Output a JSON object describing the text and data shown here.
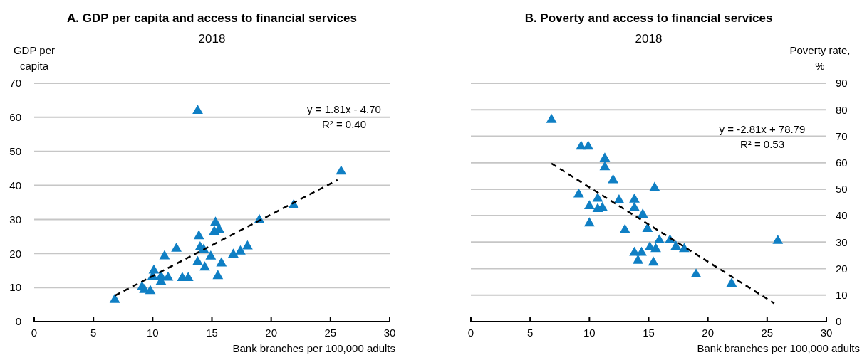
{
  "chart_data": [
    {
      "type": "scatter",
      "title": "A. GDP per capita and access to financial services",
      "subtitle": "2018",
      "xlabel": "Bank branches per 100,000 adults",
      "ylabel": "GDP per capita",
      "xlim": [
        0,
        30
      ],
      "xticks": [
        0,
        5,
        10,
        15,
        20,
        25,
        30
      ],
      "ylim": [
        0,
        70
      ],
      "yticks": [
        0,
        10,
        20,
        30,
        40,
        50,
        60,
        70
      ],
      "grid": "y",
      "marker": "triangle",
      "series": [
        {
          "color": "#0f7fc4",
          "x": [
            6.8,
            9.1,
            9.3,
            9.8,
            10.1,
            10.0,
            10.7,
            10.7,
            11.3,
            11.0,
            12.0,
            12.5,
            13.0,
            13.9,
            13.8,
            14.0,
            14.3,
            14.4,
            14.9,
            15.3,
            15.2,
            15.6,
            15.8,
            15.5,
            16.8,
            17.4,
            18.0,
            19.0,
            13.8,
            25.9,
            21.9
          ],
          "values": [
            6.4,
            10.1,
            9.3,
            9.0,
            15.0,
            13.2,
            13.2,
            11.7,
            12.9,
            19.2,
            21.4,
            12.8,
            12.8,
            25.1,
            17.5,
            21.8,
            21.1,
            15.9,
            19.1,
            29.1,
            26.4,
            27.0,
            17.1,
            13.4,
            19.7,
            20.6,
            22.1,
            29.8,
            61.9,
            44.1,
            34.2
          ]
        },
        {
          "type": "line",
          "color": "#000000",
          "line_style": "dashed",
          "marker": "none",
          "x": [
            6.8,
            25.6
          ],
          "values": [
            7.6,
            41.6
          ]
        }
      ],
      "annotations": [
        "y = 1.81x - 4.70",
        "R² = 0.40"
      ]
    },
    {
      "type": "scatter",
      "title": "B. Poverty and access to financial services",
      "subtitle": "2018",
      "xlabel": "Bank branches per 100,000 adults",
      "y2label": "Poverty rate, %",
      "xlim": [
        0,
        30
      ],
      "xticks": [
        0,
        5,
        10,
        15,
        20,
        25,
        30
      ],
      "y2lim": [
        0,
        90
      ],
      "y2ticks": [
        0,
        10,
        20,
        30,
        40,
        50,
        60,
        70,
        80,
        90
      ],
      "grid": "y",
      "marker": "triangle",
      "series": [
        {
          "color": "#0f7fc4",
          "axis": "y2",
          "x": [
            6.8,
            9.3,
            9.9,
            11.3,
            11.3,
            12.0,
            15.5,
            9.1,
            10.7,
            12.5,
            13.8,
            10.0,
            10.7,
            11.1,
            13.8,
            14.5,
            10.0,
            13.0,
            14.9,
            15.9,
            16.8,
            17.3,
            18.0,
            13.8,
            14.4,
            15.1,
            15.6,
            14.1,
            15.4,
            19.0,
            22.0,
            25.9
          ],
          "values": [
            76.2,
            66.1,
            66.1,
            61.6,
            58.3,
            53.4,
            50.5,
            48.0,
            46.4,
            45.8,
            46.1,
            43.6,
            42.5,
            42.9,
            42.9,
            40.4,
            37.1,
            34.6,
            35.0,
            30.7,
            30.7,
            28.3,
            27.4,
            26.0,
            26.0,
            28.0,
            27.4,
            23.0,
            22.3,
            17.8,
            14.3,
            30.5
          ]
        },
        {
          "type": "line",
          "color": "#000000",
          "line_style": "dashed",
          "marker": "none",
          "axis": "y2",
          "x": [
            6.8,
            25.6
          ],
          "values": [
            59.7,
            6.9
          ]
        }
      ],
      "annotations": [
        "y = -2.81x + 78.79",
        "R² = 0.53"
      ]
    }
  ]
}
